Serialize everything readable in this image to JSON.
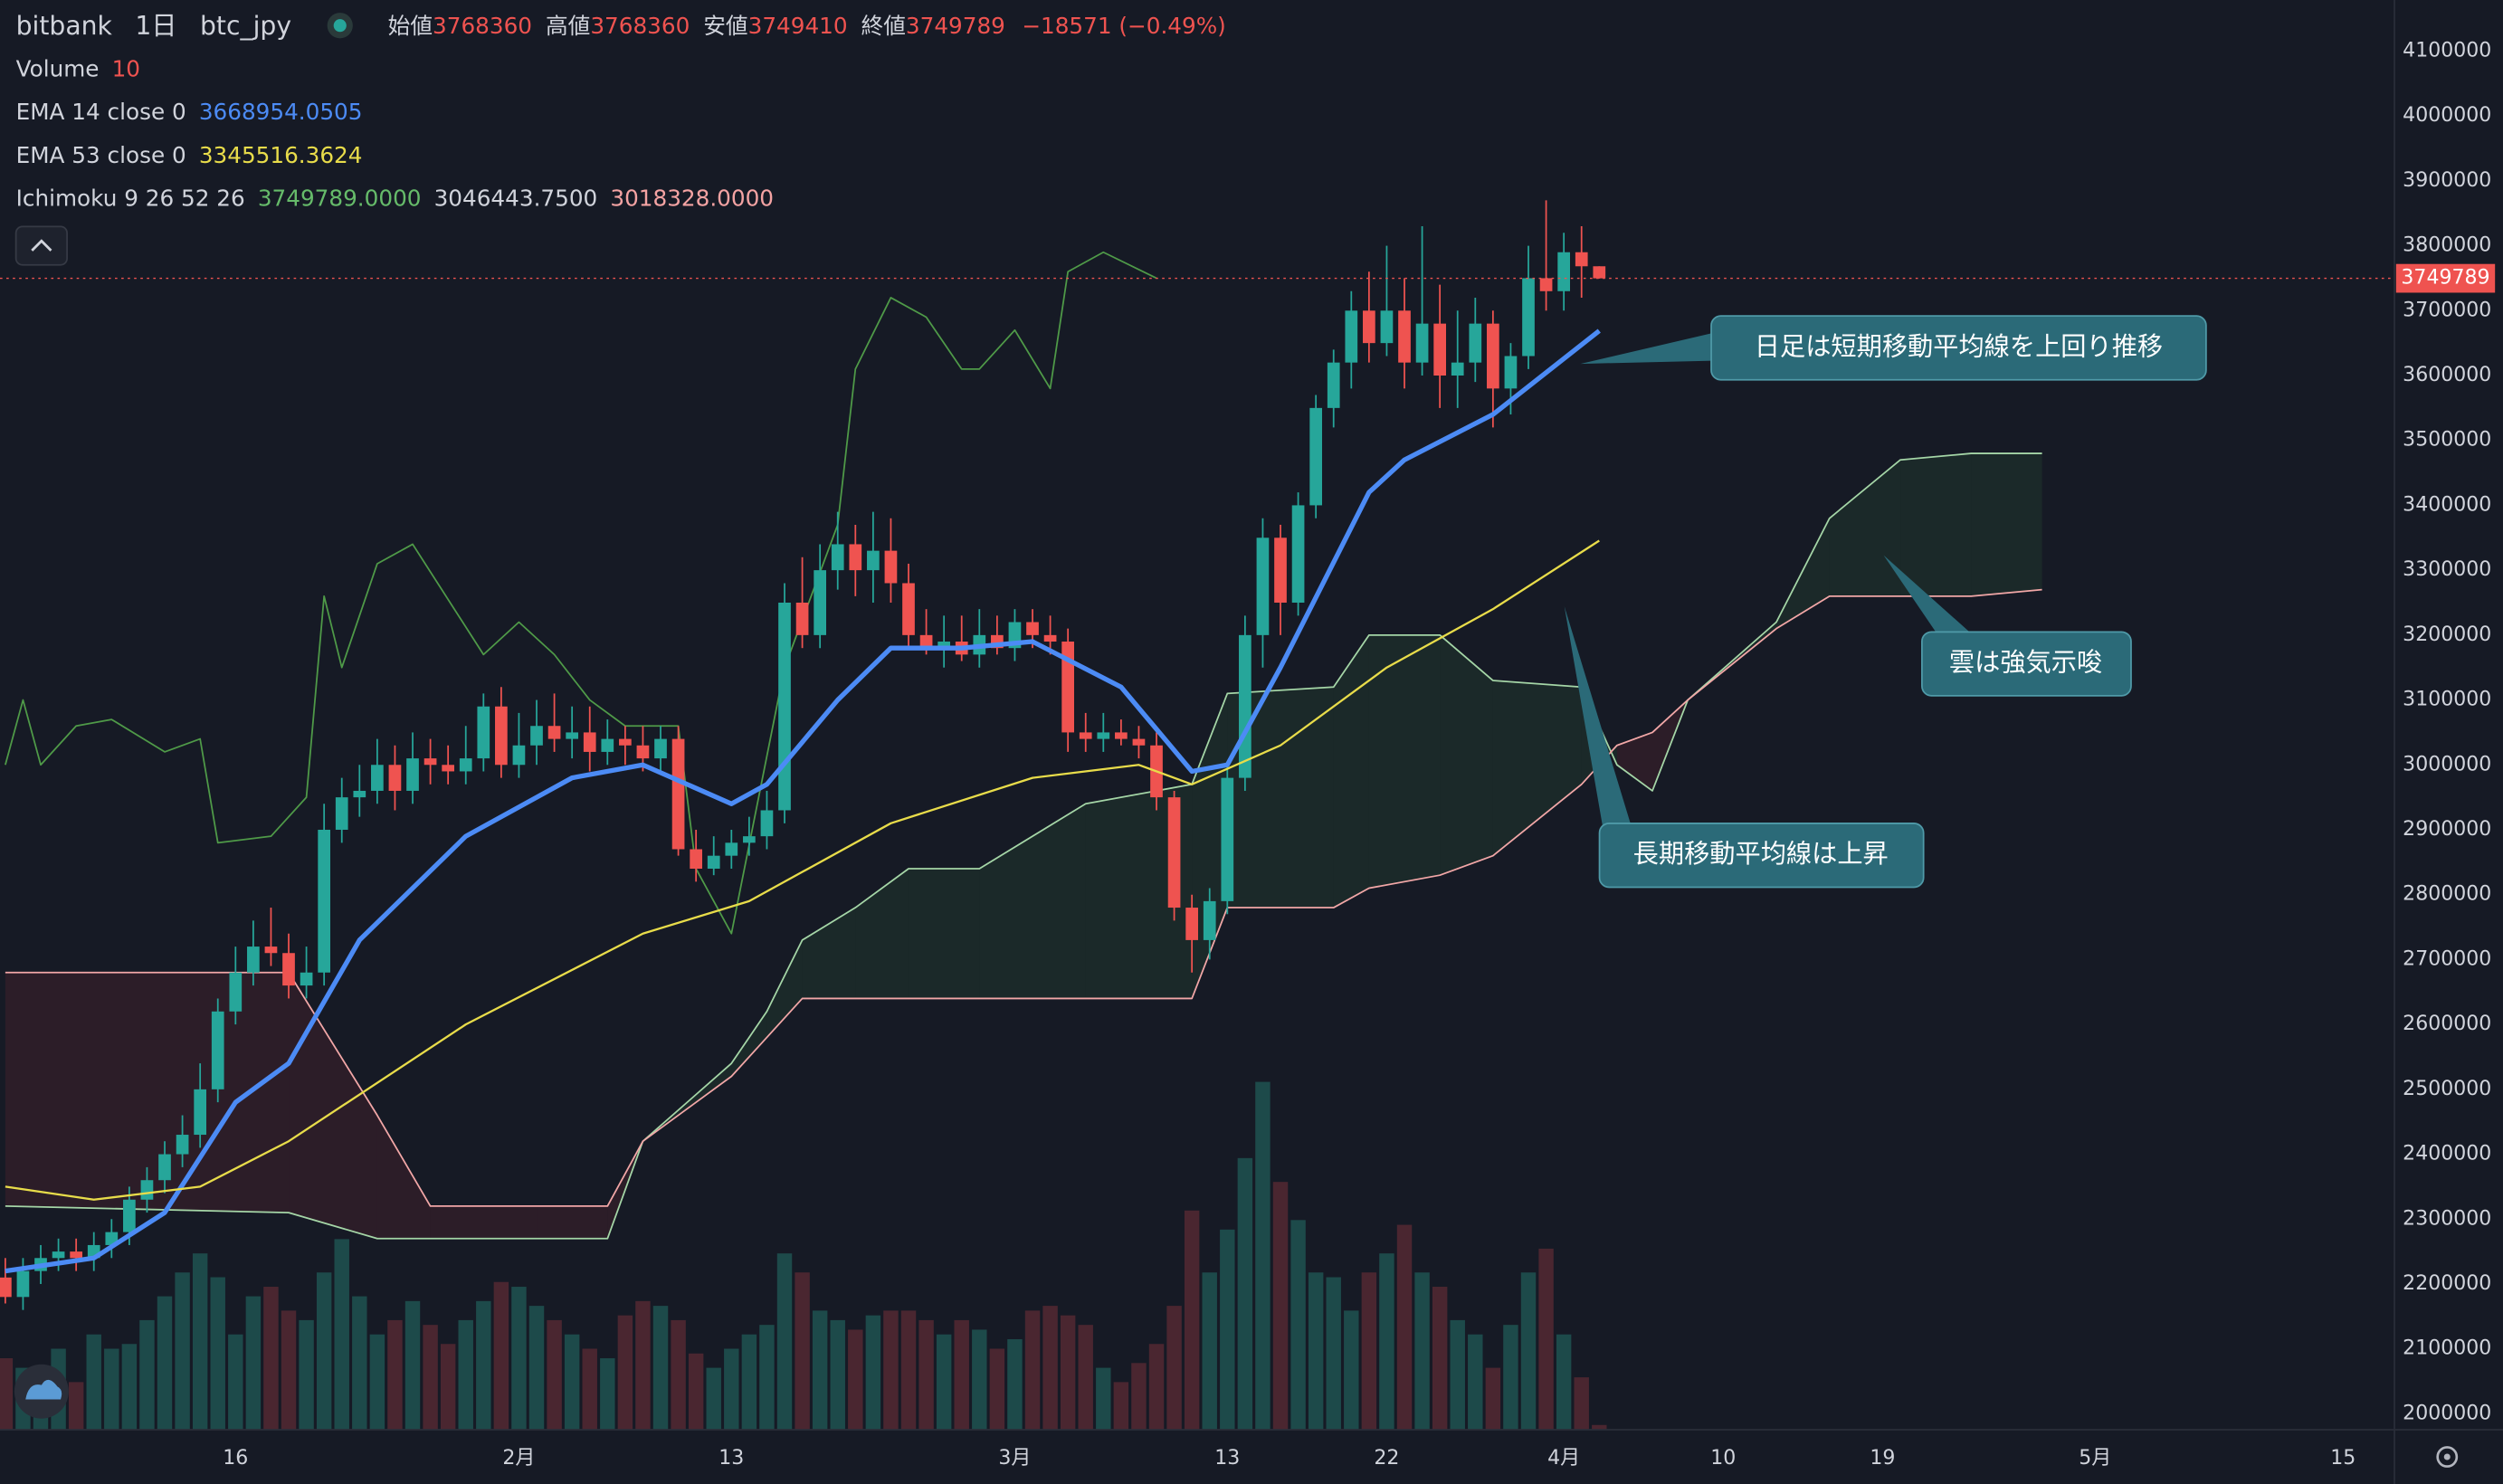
{
  "chart_data": {
    "type": "candlestick",
    "header": {
      "exchange": "bitbank",
      "interval": "1日",
      "symbol": "btc_jpy",
      "ohlc_names": [
        "始値",
        "高値",
        "安値",
        "終値"
      ],
      "change": "−18571 (−0.49%)"
    },
    "xlim": [
      2.7,
      137.9
    ],
    "xticks": [
      {
        "value": 16,
        "label": "16"
      },
      {
        "value": 32,
        "label": "2月"
      },
      {
        "value": 44,
        "label": "13"
      },
      {
        "value": 60,
        "label": "3月"
      },
      {
        "value": 72,
        "label": "13"
      },
      {
        "value": 81,
        "label": "22"
      },
      {
        "value": 91,
        "label": "4月"
      },
      {
        "value": 100,
        "label": "10"
      },
      {
        "value": 109,
        "label": "19"
      },
      {
        "value": 121,
        "label": "5月"
      },
      {
        "value": 135,
        "label": "15"
      }
    ],
    "ylim": [
      1975400,
      4178700
    ],
    "yticks": [
      2000000,
      2100000,
      2200000,
      2300000,
      2400000,
      2500000,
      2600000,
      2700000,
      2800000,
      2900000,
      3000000,
      3100000,
      3200000,
      3300000,
      3400000,
      3500000,
      3600000,
      3700000,
      3800000,
      3900000,
      4000000,
      4100000
    ],
    "up_color": "#26a69a",
    "down_color": "#ef5350",
    "x_start": 3,
    "ohlc": [
      [
        2210000,
        2240000,
        2170000,
        2180000
      ],
      [
        2180000,
        2240000,
        2160000,
        2220000
      ],
      [
        2220000,
        2260000,
        2200000,
        2240000
      ],
      [
        2240000,
        2270000,
        2220000,
        2250000
      ],
      [
        2250000,
        2270000,
        2220000,
        2240000
      ],
      [
        2240000,
        2280000,
        2220000,
        2260000
      ],
      [
        2260000,
        2300000,
        2240000,
        2280000
      ],
      [
        2280000,
        2350000,
        2260000,
        2330000
      ],
      [
        2330000,
        2380000,
        2310000,
        2360000
      ],
      [
        2360000,
        2420000,
        2340000,
        2400000
      ],
      [
        2400000,
        2460000,
        2380000,
        2430000
      ],
      [
        2430000,
        2540000,
        2410000,
        2500000
      ],
      [
        2500000,
        2640000,
        2480000,
        2620000
      ],
      [
        2620000,
        2720000,
        2600000,
        2680000
      ],
      [
        2680000,
        2760000,
        2660000,
        2720000
      ],
      [
        2720000,
        2780000,
        2690000,
        2710000
      ],
      [
        2710000,
        2740000,
        2640000,
        2660000
      ],
      [
        2660000,
        2720000,
        2640000,
        2680000
      ],
      [
        2680000,
        2940000,
        2660000,
        2900000
      ],
      [
        2900000,
        2980000,
        2880000,
        2950000
      ],
      [
        2950000,
        3000000,
        2920000,
        2960000
      ],
      [
        2960000,
        3040000,
        2940000,
        3000000
      ],
      [
        3000000,
        3030000,
        2930000,
        2960000
      ],
      [
        2960000,
        3050000,
        2940000,
        3010000
      ],
      [
        3010000,
        3040000,
        2970000,
        3000000
      ],
      [
        3000000,
        3030000,
        2970000,
        2990000
      ],
      [
        2990000,
        3060000,
        2970000,
        3010000
      ],
      [
        3010000,
        3110000,
        2990000,
        3090000
      ],
      [
        3090000,
        3120000,
        2980000,
        3000000
      ],
      [
        3000000,
        3080000,
        2980000,
        3030000
      ],
      [
        3030000,
        3100000,
        3000000,
        3060000
      ],
      [
        3060000,
        3110000,
        3020000,
        3040000
      ],
      [
        3040000,
        3090000,
        3010000,
        3050000
      ],
      [
        3050000,
        3090000,
        2990000,
        3020000
      ],
      [
        3020000,
        3070000,
        3000000,
        3040000
      ],
      [
        3040000,
        3060000,
        3000000,
        3030000
      ],
      [
        3030000,
        3060000,
        2990000,
        3010000
      ],
      [
        3010000,
        3060000,
        2990000,
        3040000
      ],
      [
        3040000,
        3060000,
        2860000,
        2870000
      ],
      [
        2870000,
        2900000,
        2820000,
        2840000
      ],
      [
        2840000,
        2890000,
        2830000,
        2860000
      ],
      [
        2860000,
        2900000,
        2840000,
        2880000
      ],
      [
        2880000,
        2920000,
        2860000,
        2890000
      ],
      [
        2890000,
        2960000,
        2870000,
        2930000
      ],
      [
        2930000,
        3280000,
        2910000,
        3250000
      ],
      [
        3250000,
        3320000,
        3180000,
        3200000
      ],
      [
        3200000,
        3340000,
        3180000,
        3300000
      ],
      [
        3300000,
        3390000,
        3270000,
        3340000
      ],
      [
        3340000,
        3370000,
        3260000,
        3300000
      ],
      [
        3300000,
        3390000,
        3250000,
        3330000
      ],
      [
        3330000,
        3380000,
        3250000,
        3280000
      ],
      [
        3280000,
        3310000,
        3180000,
        3200000
      ],
      [
        3200000,
        3240000,
        3170000,
        3180000
      ],
      [
        3180000,
        3230000,
        3150000,
        3190000
      ],
      [
        3190000,
        3230000,
        3160000,
        3170000
      ],
      [
        3170000,
        3240000,
        3150000,
        3200000
      ],
      [
        3200000,
        3230000,
        3170000,
        3180000
      ],
      [
        3180000,
        3240000,
        3160000,
        3220000
      ],
      [
        3220000,
        3240000,
        3180000,
        3200000
      ],
      [
        3200000,
        3230000,
        3170000,
        3190000
      ],
      [
        3190000,
        3210000,
        3020000,
        3050000
      ],
      [
        3050000,
        3080000,
        3020000,
        3040000
      ],
      [
        3040000,
        3080000,
        3020000,
        3050000
      ],
      [
        3050000,
        3070000,
        3030000,
        3040000
      ],
      [
        3040000,
        3060000,
        3010000,
        3030000
      ],
      [
        3030000,
        3050000,
        2930000,
        2950000
      ],
      [
        2950000,
        2960000,
        2760000,
        2780000
      ],
      [
        2780000,
        2800000,
        2680000,
        2730000
      ],
      [
        2730000,
        2810000,
        2700000,
        2790000
      ],
      [
        2790000,
        3000000,
        2770000,
        2980000
      ],
      [
        2980000,
        3230000,
        2960000,
        3200000
      ],
      [
        3200000,
        3380000,
        3150000,
        3350000
      ],
      [
        3350000,
        3370000,
        3200000,
        3250000
      ],
      [
        3250000,
        3420000,
        3230000,
        3400000
      ],
      [
        3400000,
        3570000,
        3380000,
        3550000
      ],
      [
        3550000,
        3640000,
        3520000,
        3620000
      ],
      [
        3620000,
        3730000,
        3580000,
        3700000
      ],
      [
        3700000,
        3760000,
        3620000,
        3650000
      ],
      [
        3650000,
        3800000,
        3630000,
        3700000
      ],
      [
        3700000,
        3750000,
        3580000,
        3620000
      ],
      [
        3620000,
        3830000,
        3600000,
        3680000
      ],
      [
        3680000,
        3740000,
        3550000,
        3600000
      ],
      [
        3600000,
        3700000,
        3550000,
        3620000
      ],
      [
        3620000,
        3720000,
        3590000,
        3680000
      ],
      [
        3680000,
        3700000,
        3520000,
        3580000
      ],
      [
        3580000,
        3650000,
        3540000,
        3630000
      ],
      [
        3630000,
        3800000,
        3610000,
        3750000
      ],
      [
        3750000,
        3870000,
        3700000,
        3730000
      ],
      [
        3730000,
        3820000,
        3700000,
        3790000
      ],
      [
        3790000,
        3830000,
        3720000,
        3768360
      ],
      [
        3768360,
        3768360,
        3749410,
        3749789
      ]
    ],
    "volume_name": "Volume",
    "vlim": [
      0,
      3000
    ],
    "volume_up_color": "#1d4a4a",
    "volume_down_color": "#4a2630",
    "volume": [
      150,
      130,
      120,
      170,
      100,
      200,
      170,
      180,
      230,
      280,
      330,
      370,
      320,
      200,
      280,
      300,
      250,
      230,
      330,
      400,
      280,
      200,
      230,
      270,
      220,
      180,
      230,
      270,
      310,
      300,
      260,
      230,
      200,
      170,
      150,
      240,
      270,
      260,
      230,
      160,
      130,
      170,
      200,
      220,
      370,
      330,
      250,
      230,
      210,
      240,
      250,
      250,
      230,
      200,
      230,
      210,
      170,
      190,
      250,
      260,
      240,
      220,
      130,
      100,
      140,
      180,
      260,
      460,
      330,
      420,
      570,
      730,
      520,
      440,
      330,
      320,
      250,
      330,
      370,
      430,
      330,
      300,
      230,
      200,
      130,
      220,
      330,
      380,
      200,
      110,
      10
    ],
    "series": [
      {
        "name": "EMA 14 close 0",
        "color": "#4c8bf5",
        "width": 3,
        "x": [
          3,
          8,
          12,
          16,
          19,
          23,
          29,
          35,
          39,
          44,
          46,
          50,
          53,
          57,
          61,
          66,
          70,
          72,
          75,
          80,
          82,
          87,
          93
        ],
        "values": [
          2220000,
          2240000,
          2310000,
          2480000,
          2540000,
          2730000,
          2890000,
          2980000,
          3000000,
          2940000,
          2970000,
          3100000,
          3180000,
          3180000,
          3190000,
          3120000,
          2990000,
          3000000,
          3150000,
          3420000,
          3470000,
          3540000,
          3668954.0505
        ]
      },
      {
        "name": "EMA 53 close 0",
        "color": "#e8dc4a",
        "width": 1.3,
        "x": [
          3,
          8,
          14,
          19,
          29,
          39,
          45,
          53,
          61,
          67,
          70,
          75,
          81,
          87,
          93
        ],
        "values": [
          2350000,
          2330000,
          2350000,
          2420000,
          2600000,
          2740000,
          2790000,
          2910000,
          2980000,
          3000000,
          2970000,
          3030000,
          3150000,
          3240000,
          3345516.3624
        ]
      }
    ],
    "ichimoku": {
      "name": "Ichimoku 9 26 52 26",
      "value_texts": [
        "3749789.0000",
        "3046443.7500",
        "3018328.0000"
      ],
      "value_colors": [
        "#66bb6a",
        "#d1d4dc",
        "#f4a3a3"
      ],
      "lagging": {
        "color": "#4f9a48",
        "x": [
          3,
          4,
          5,
          7,
          9,
          12,
          14,
          15,
          18,
          20,
          21,
          22,
          24,
          26,
          30,
          32,
          34,
          36,
          38,
          41,
          42,
          44,
          47,
          50,
          51,
          53,
          55,
          57,
          58,
          60,
          62,
          63,
          65,
          68
        ],
        "values": [
          3000000,
          3100000,
          3000000,
          3060000,
          3070000,
          3020000,
          3040000,
          2880000,
          2890000,
          2950000,
          3260000,
          3150000,
          3310000,
          3340000,
          3170000,
          3220000,
          3170000,
          3100000,
          3060000,
          3060000,
          2840000,
          2740000,
          3150000,
          3370000,
          3610000,
          3720000,
          3690000,
          3610000,
          3610000,
          3670000,
          3580000,
          3760000,
          3790000,
          3750000
        ]
      },
      "x": [
        3,
        19,
        24,
        27,
        33,
        37,
        39,
        44,
        46,
        48,
        51,
        54,
        58,
        64,
        70,
        72,
        78,
        80,
        84,
        87,
        92,
        94,
        96,
        98,
        103,
        106,
        110,
        114,
        118
      ],
      "span_a": {
        "color": "#a5d6a7",
        "fill": "rgba(76,175,80,0.10)",
        "values": [
          2320000,
          2310000,
          2270000,
          2270000,
          2270000,
          2270000,
          2420000,
          2540000,
          2620000,
          2730000,
          2780000,
          2840000,
          2840000,
          2940000,
          2970000,
          3110000,
          3120000,
          3200000,
          3200000,
          3130000,
          3120000,
          3000000,
          2960000,
          3100000,
          3220000,
          3380000,
          3470000,
          3480000,
          3480000
        ]
      },
      "span_b": {
        "color": "#f2a7a7",
        "fill": "rgba(242,54,69,0.10)",
        "values": [
          2680000,
          2680000,
          2460000,
          2320000,
          2320000,
          2320000,
          2420000,
          2520000,
          2580000,
          2640000,
          2640000,
          2640000,
          2640000,
          2640000,
          2640000,
          2780000,
          2780000,
          2810000,
          2830000,
          2860000,
          2970000,
          3030000,
          3050000,
          3100000,
          3210000,
          3260000,
          3260000,
          3260000,
          3270000
        ]
      }
    },
    "annotations": [
      "日足は短期移動平均線を上回り推移",
      "雲は強気示唆",
      "長期移動平均線は上昇"
    ]
  }
}
